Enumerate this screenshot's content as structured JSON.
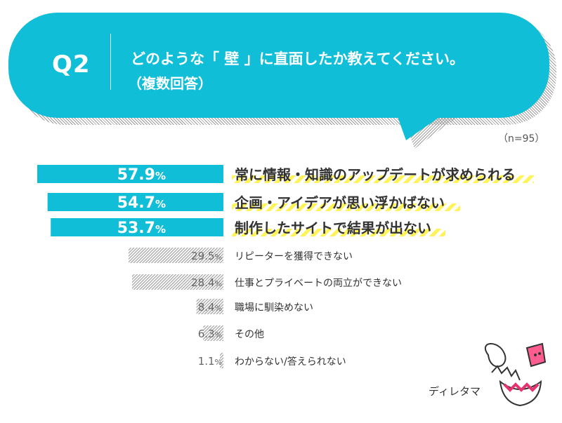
{
  "header": {
    "q_label": "Q2",
    "question_line1": "どのような「 壁 」に直面したか教えてください。",
    "question_line2": "（複数回答）",
    "sample": "（n=95）"
  },
  "colors": {
    "highlight_bar": "#10bed7",
    "hatched_bar": "#a0a0a0",
    "label_underline": "#fff35a"
  },
  "chart_data": {
    "type": "bar",
    "orientation": "horizontal",
    "categories": [
      "常に情報・知識のアップデートが求められる",
      "企画・アイデアが思い浮かばない",
      "制作したサイトで結果が出ない",
      "リピーターを獲得できない",
      "仕事とプライベートの両立ができない",
      "職場に馴染めない",
      "その他",
      "わからない/答えられない"
    ],
    "values": [
      57.9,
      54.7,
      53.7,
      29.5,
      28.4,
      8.4,
      6.3,
      1.1
    ],
    "value_suffix": "%",
    "highlighted_count": 3,
    "xlim": [
      0,
      57.9
    ]
  },
  "brand": {
    "name": "ディレタマ"
  }
}
